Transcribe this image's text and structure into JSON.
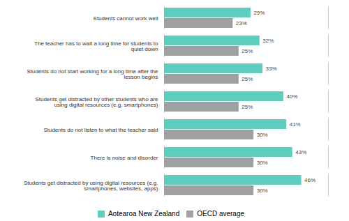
{
  "chart_data": {
    "type": "bar",
    "orientation": "horizontal",
    "categories": [
      "Students cannot work well",
      "The teacher has to wait a long time for students to\nquiet down",
      "Students do not start working for a long time after the\nlesson begins",
      "Students get distracted by other students who are\nusing digital resources (e.g. smartphones)",
      "Students do not listen to what the teacher said",
      "There is noise and disorder",
      "Students get distracted by using digital resources (e.g.\nsmartphones, websites, apps)"
    ],
    "series": [
      {
        "name": "Aotearoa New Zealand",
        "color": "#5ecfbf",
        "values": [
          29,
          32,
          33,
          40,
          41,
          43,
          46
        ],
        "value_labels": [
          "29%",
          "32%",
          "33%",
          "40%",
          "41%",
          "43%",
          "46%"
        ]
      },
      {
        "name": "OECD average",
        "color": "#a0a0a0",
        "values": [
          23,
          25,
          25,
          25,
          30,
          30,
          30
        ],
        "value_labels": [
          "23%",
          "25%",
          "25%",
          "25%",
          "30%",
          "30%",
          "30%"
        ]
      }
    ],
    "xlim": [
      0,
      55
    ],
    "data_labels": true,
    "tick_labels": "y",
    "legend": "bottom",
    "grid": false
  }
}
